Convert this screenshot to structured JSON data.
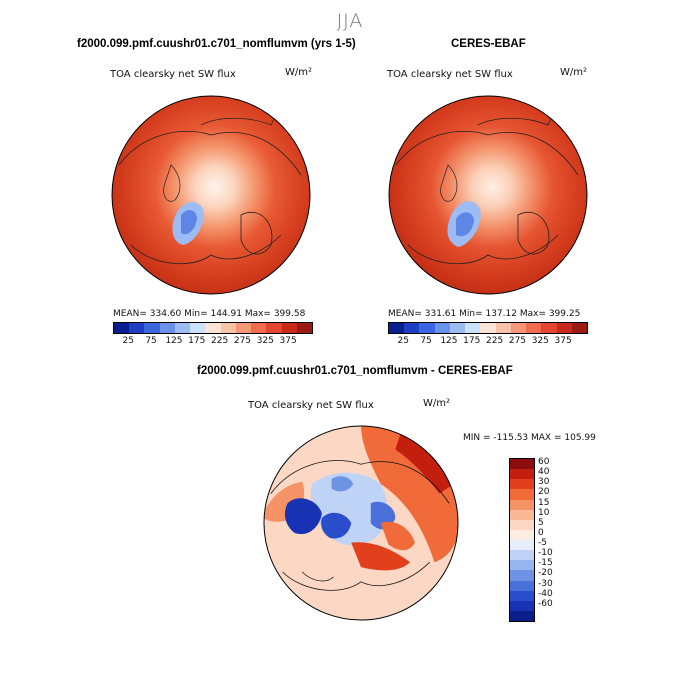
{
  "season": "JJA",
  "panels": [
    {
      "title": "f2000.099.pmf.cuushr01.c701_nomflumvm (yrs 1-5)",
      "variable": "TOA clearsky net SW flux",
      "units": "W/m²",
      "stats": "MEAN= 334.60   Min= 144.91   Max= 399.58"
    },
    {
      "title": "CERES-EBAF",
      "variable": "TOA clearsky net SW flux",
      "units": "W/m²",
      "stats": "MEAN= 331.61   Min= 137.12   Max= 399.25"
    }
  ],
  "abs_colorbar": {
    "colors": [
      "#0a1f8f",
      "#1c3fc4",
      "#3a66e0",
      "#6a92ec",
      "#9cbcf3",
      "#cfe0fa",
      "#fbe3d6",
      "#f8c2a6",
      "#f49878",
      "#ef6d4d",
      "#e2462c",
      "#c52b18",
      "#9a1c10"
    ],
    "ticks": [
      "25",
      "75",
      "125",
      "175",
      "225",
      "275",
      "325",
      "375"
    ]
  },
  "diff_panel": {
    "title": "f2000.099.pmf.cuushr01.c701_nomflumvm - CERES-EBAF",
    "variable": "TOA clearsky net SW flux",
    "units": "W/m²",
    "minmax": "MIN = -115.53  MAX = 105.99"
  },
  "diff_colorbar": {
    "colors": [
      "#8b0d0d",
      "#c41e0e",
      "#e2401d",
      "#f06a3a",
      "#f69366",
      "#fab896",
      "#fbd7c4",
      "#fdeee4",
      "#e6eefc",
      "#bfd3f6",
      "#96b5ee",
      "#6f93e4",
      "#4a70da",
      "#2a4dcc",
      "#1832b4",
      "#0c1e8a"
    ],
    "ticks": [
      "60",
      "40",
      "30",
      "20",
      "15",
      "10",
      "5",
      "0",
      "-5",
      "-10",
      "-15",
      "-20",
      "-30",
      "-40",
      "-60"
    ]
  }
}
